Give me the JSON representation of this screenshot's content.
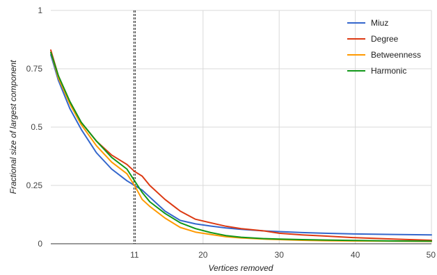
{
  "chart_data": {
    "type": "line",
    "xlabel": "Vertices removed",
    "ylabel": "Fractional size of largest component",
    "xlim": [
      0,
      50
    ],
    "ylim": [
      0,
      1
    ],
    "grid": true,
    "legend_position": "top-right",
    "x_ticks": [
      {
        "value": 11,
        "label": "11"
      },
      {
        "value": 20,
        "label": "20"
      },
      {
        "value": 30,
        "label": "30"
      },
      {
        "value": 40,
        "label": "40"
      },
      {
        "value": 50,
        "label": "50"
      }
    ],
    "y_ticks": [
      {
        "value": 0,
        "label": "0"
      },
      {
        "value": 0.25,
        "label": "0.25"
      },
      {
        "value": 0.5,
        "label": "0.5"
      },
      {
        "value": 0.75,
        "label": "0.75"
      },
      {
        "value": 1,
        "label": "1"
      }
    ],
    "vertical_marker_x": 11,
    "x": [
      0,
      1,
      2.5,
      4,
      6,
      8,
      10,
      11,
      12,
      13,
      15,
      17,
      19,
      21,
      23,
      25,
      28,
      30,
      33,
      36,
      40,
      45,
      50
    ],
    "series": [
      {
        "name": "Miuz",
        "color": "#3366cc",
        "values": [
          0.81,
          0.7,
          0.58,
          0.49,
          0.39,
          0.32,
          0.27,
          0.25,
          0.23,
          0.2,
          0.14,
          0.1,
          0.085,
          0.076,
          0.068,
          0.062,
          0.055,
          0.052,
          0.048,
          0.045,
          0.042,
          0.04,
          0.038
        ]
      },
      {
        "name": "Degree",
        "color": "#dc3912",
        "values": [
          0.83,
          0.72,
          0.61,
          0.52,
          0.44,
          0.38,
          0.34,
          0.31,
          0.29,
          0.25,
          0.19,
          0.14,
          0.105,
          0.09,
          0.075,
          0.065,
          0.055,
          0.045,
          0.038,
          0.033,
          0.026,
          0.02,
          0.015
        ]
      },
      {
        "name": "Betweenness",
        "color": "#ff9900",
        "values": [
          0.82,
          0.71,
          0.6,
          0.51,
          0.42,
          0.35,
          0.3,
          0.25,
          0.19,
          0.16,
          0.11,
          0.07,
          0.05,
          0.04,
          0.03,
          0.025,
          0.02,
          0.018,
          0.015,
          0.013,
          0.012,
          0.011,
          0.01
        ]
      },
      {
        "name": "Harmonic",
        "color": "#109618",
        "values": [
          0.82,
          0.72,
          0.61,
          0.52,
          0.44,
          0.37,
          0.32,
          0.27,
          0.22,
          0.18,
          0.13,
          0.09,
          0.065,
          0.048,
          0.035,
          0.028,
          0.022,
          0.02,
          0.018,
          0.016,
          0.014,
          0.012,
          0.011
        ]
      }
    ]
  }
}
